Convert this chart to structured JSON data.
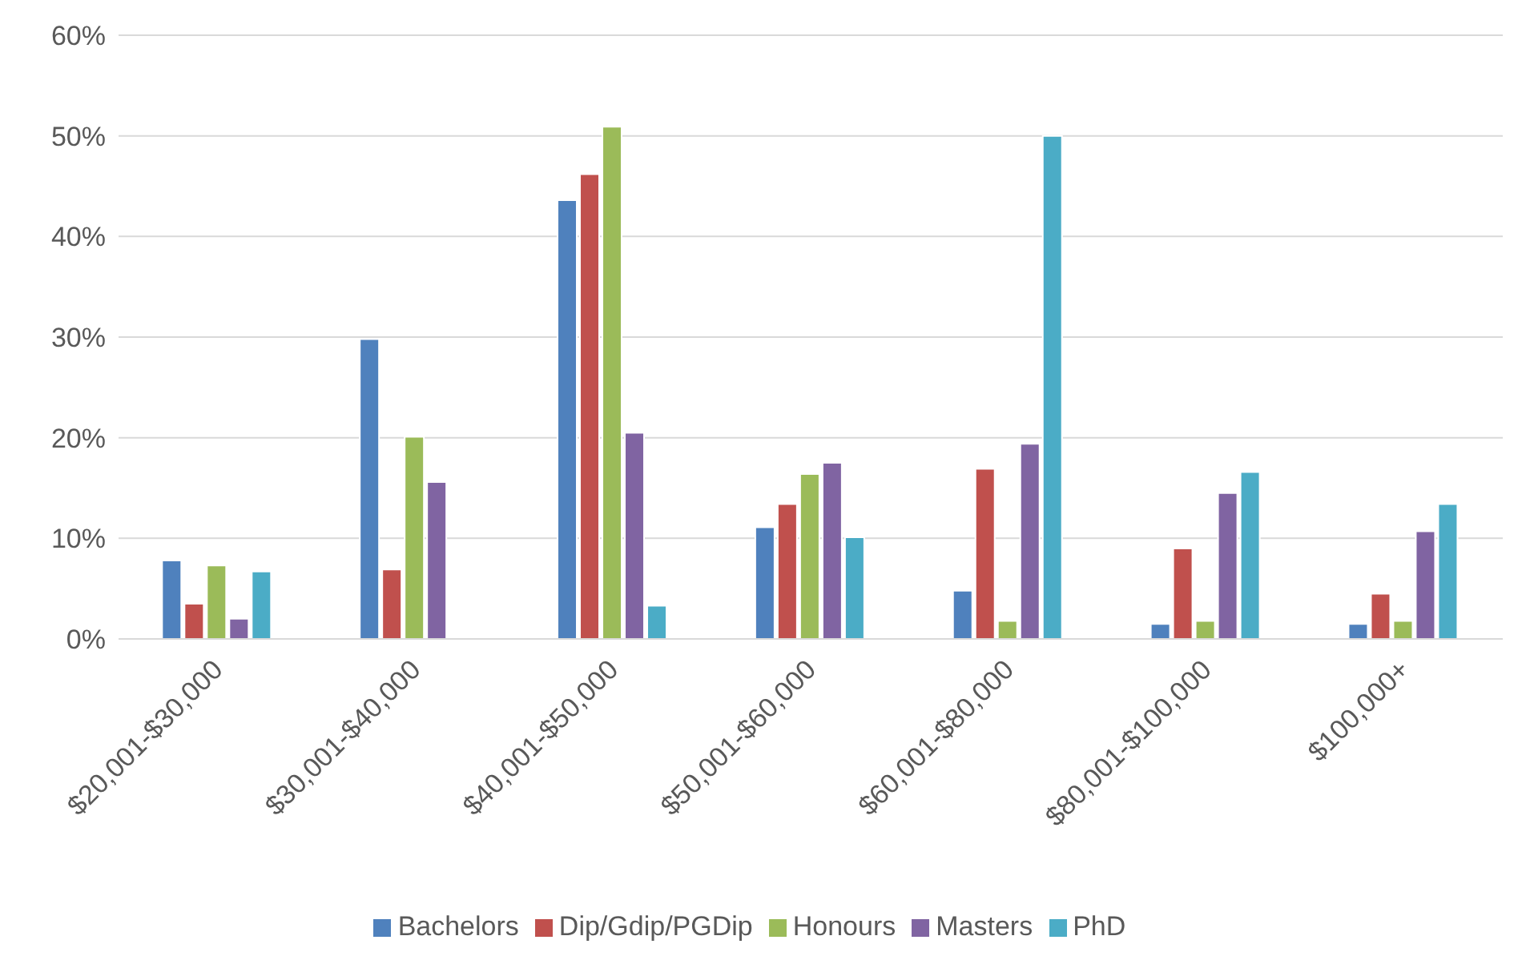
{
  "chart_data": {
    "type": "bar",
    "categories": [
      "$20,001-$30,000",
      "$30,001-$40,000",
      "$40,001-$50,000",
      "$50,001-$60,000",
      "$60,001-$80,000",
      "$80,001-$100,000",
      "$100,000+"
    ],
    "series": [
      {
        "name": "Bachelors",
        "color": "#4f81bd",
        "values": [
          7.8,
          29.8,
          43.6,
          11.1,
          4.8,
          1.5,
          1.5
        ]
      },
      {
        "name": "Dip/Gdip/PGDip",
        "color": "#c0504d",
        "values": [
          3.5,
          6.9,
          46.2,
          13.4,
          16.9,
          9.0,
          4.5
        ]
      },
      {
        "name": "Honours",
        "color": "#9bbb59",
        "values": [
          7.3,
          20.1,
          50.9,
          16.4,
          1.8,
          1.8,
          1.8
        ]
      },
      {
        "name": "Masters",
        "color": "#8064a2",
        "values": [
          2.0,
          15.6,
          20.5,
          17.5,
          19.4,
          14.5,
          10.7
        ]
      },
      {
        "name": "PhD",
        "color": "#4bacc6",
        "values": [
          6.7,
          0,
          3.3,
          10.1,
          50.0,
          16.6,
          13.4
        ]
      }
    ],
    "ylim": [
      0,
      60
    ],
    "yticks": [
      {
        "value": 0,
        "label": "0%"
      },
      {
        "value": 10,
        "label": "10%"
      },
      {
        "value": 20,
        "label": "20%"
      },
      {
        "value": 30,
        "label": "30%"
      },
      {
        "value": 40,
        "label": "40%"
      },
      {
        "value": 50,
        "label": "50%"
      },
      {
        "value": 60,
        "label": "60%"
      }
    ],
    "grid": "y",
    "legend": "bottom"
  }
}
